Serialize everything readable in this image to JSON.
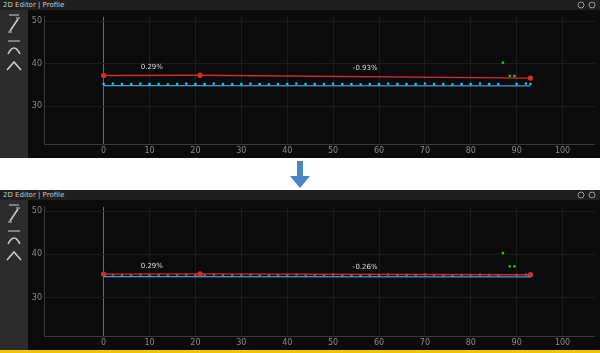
{
  "chart_data": [
    {
      "type": "scatter",
      "title": "2D Editor | Profile",
      "xlim": [
        -13,
        107
      ],
      "xticks": [
        0,
        10,
        20,
        30,
        40,
        50,
        60,
        70,
        80,
        90,
        100
      ],
      "ylim": [
        21,
        51
      ],
      "yticks": [
        30,
        40,
        50
      ],
      "grid": true,
      "annotations": [
        {
          "text": "0.29%",
          "x": 10.5,
          "y": 38.3
        },
        {
          "text": "-0.93%",
          "x": 57,
          "y": 38.0
        }
      ],
      "series": [
        {
          "type": "scatter",
          "color": "#2ec4d6",
          "marker": "square",
          "x": [
            0,
            2,
            4,
            6,
            8,
            10,
            12,
            14,
            16,
            18,
            20,
            22,
            24,
            26,
            28,
            30,
            32,
            34,
            36,
            38,
            40,
            42,
            44,
            46,
            48,
            50,
            52,
            54,
            56,
            58,
            60,
            62,
            64,
            66,
            68,
            70,
            72,
            74,
            76,
            78,
            80,
            82,
            84,
            86,
            90,
            92,
            93
          ],
          "values": [
            35.2,
            35.3,
            35.2,
            35.2,
            35.3,
            35.2,
            35.2,
            35.1,
            35.2,
            35.3,
            35.2,
            35.2,
            35.3,
            35.2,
            35.2,
            35.2,
            35.3,
            35.2,
            35.1,
            35.2,
            35.2,
            35.3,
            35.2,
            35.2,
            35.2,
            35.3,
            35.2,
            35.2,
            35.1,
            35.2,
            35.2,
            35.3,
            35.2,
            35.2,
            35.2,
            35.3,
            35.2,
            35.2,
            35.1,
            35.2,
            35.2,
            35.3,
            35.2,
            35.2,
            35.2,
            35.3,
            35.2
          ]
        },
        {
          "type": "line",
          "color": "#3aa0e0",
          "marker": "none",
          "line_style": "solid",
          "x": [
            0,
            93
          ],
          "values": [
            34.8,
            34.75
          ]
        },
        {
          "type": "line",
          "color": "#d32a2a",
          "marker": "circle",
          "line_style": "solid",
          "x": [
            0,
            21,
            93
          ],
          "values": [
            37.2,
            37.26,
            36.59
          ]
        },
        {
          "type": "scatter",
          "color": "#3fbf5a",
          "marker": "square",
          "x": [
            87,
            88.5,
            89.5
          ],
          "values": [
            40.2,
            37.1,
            37.1
          ]
        }
      ]
    },
    {
      "type": "scatter",
      "title": "2D Editor | Profile",
      "xlim": [
        -13,
        107
      ],
      "xticks": [
        0,
        10,
        20,
        30,
        40,
        50,
        60,
        70,
        80,
        90,
        100
      ],
      "ylim": [
        21,
        51
      ],
      "yticks": [
        30,
        40,
        50
      ],
      "grid": true,
      "annotations": [
        {
          "text": "0.29%",
          "x": 10.5,
          "y": 36.4
        },
        {
          "text": "-0.26%",
          "x": 57,
          "y": 36.3
        }
      ],
      "series": [
        {
          "type": "line",
          "color": "#3aa0e0",
          "marker": "none",
          "line_style": "solid",
          "x": [
            0,
            93
          ],
          "values": [
            34.85,
            34.8
          ]
        },
        {
          "type": "line",
          "color": "#d32a2a",
          "marker": "circle",
          "line_style": "solid",
          "x": [
            0,
            21,
            93
          ],
          "values": [
            35.4,
            35.46,
            35.27
          ]
        },
        {
          "type": "scatter",
          "color": "#b06060",
          "marker": "square",
          "x": [
            0,
            2,
            4,
            6,
            8,
            10,
            12,
            14,
            16,
            18,
            20,
            22,
            24,
            26,
            28,
            30,
            32,
            34,
            36,
            38,
            40,
            42,
            44,
            46,
            48,
            50,
            52,
            54,
            56,
            58,
            60,
            62,
            64,
            66,
            68,
            70,
            72,
            74,
            76,
            78,
            80,
            82,
            84,
            86,
            90,
            92,
            93
          ],
          "values": [
            35.2,
            35.3,
            35.2,
            35.2,
            35.3,
            35.2,
            35.2,
            35.1,
            35.2,
            35.3,
            35.2,
            35.2,
            35.3,
            35.2,
            35.2,
            35.2,
            35.3,
            35.2,
            35.1,
            35.2,
            35.2,
            35.3,
            35.2,
            35.2,
            35.2,
            35.3,
            35.2,
            35.2,
            35.1,
            35.2,
            35.2,
            35.3,
            35.2,
            35.2,
            35.2,
            35.3,
            35.2,
            35.2,
            35.1,
            35.2,
            35.2,
            35.3,
            35.2,
            35.2,
            35.2,
            35.3,
            35.2
          ]
        },
        {
          "type": "scatter",
          "color": "#3fbf5a",
          "marker": "square",
          "x": [
            87,
            88.5,
            89.5
          ],
          "values": [
            40.3,
            37.2,
            37.2
          ]
        }
      ]
    }
  ]
}
